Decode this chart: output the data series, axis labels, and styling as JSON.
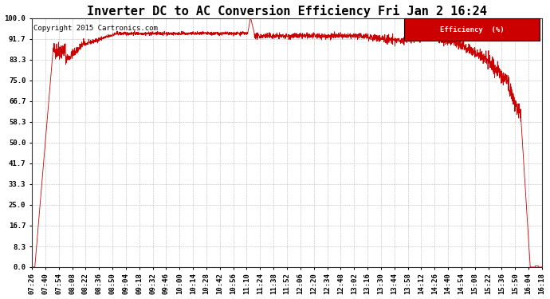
{
  "title": "Inverter DC to AC Conversion Efficiency Fri Jan 2 16:24",
  "copyright": "Copyright 2015 Cartronics.com",
  "legend_label": "Efficiency  (%)",
  "legend_bg": "#cc0000",
  "legend_fg": "#ffffff",
  "line_color": "#cc0000",
  "bg_color": "#ffffff",
  "plot_bg_color": "#ffffff",
  "grid_color": "#aaaaaa",
  "ylim": [
    0.0,
    100.0
  ],
  "yticks": [
    0.0,
    8.3,
    16.7,
    25.0,
    33.3,
    41.7,
    50.0,
    58.3,
    66.7,
    75.0,
    83.3,
    91.7,
    100.0
  ],
  "title_fontsize": 11,
  "copyright_fontsize": 6.5,
  "tick_fontsize": 6.5,
  "xtick_labels": [
    "07:26",
    "07:40",
    "07:54",
    "08:08",
    "08:22",
    "08:36",
    "08:50",
    "09:04",
    "09:18",
    "09:32",
    "09:46",
    "10:00",
    "10:14",
    "10:28",
    "10:42",
    "10:56",
    "11:10",
    "11:24",
    "11:38",
    "11:52",
    "12:06",
    "12:20",
    "12:34",
    "12:48",
    "13:02",
    "13:16",
    "13:30",
    "13:44",
    "13:58",
    "14:12",
    "14:26",
    "14:40",
    "14:54",
    "15:08",
    "15:22",
    "15:36",
    "15:50",
    "16:04",
    "16:18"
  ],
  "figsize": [
    6.9,
    3.75
  ],
  "dpi": 100
}
